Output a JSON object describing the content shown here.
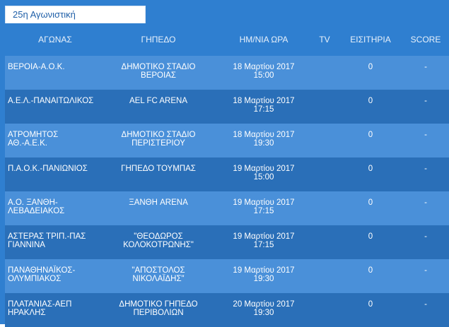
{
  "tab": {
    "label": "25η Αγωνιστική"
  },
  "headers": {
    "match": "ΑΓΩΝΑΣ",
    "stadium": "ΓΗΠΕΔΟ",
    "datetime": "ΗΜ/ΝΙΑ ΩΡΑ",
    "tv": "TV",
    "tickets": "ΕΙΣΙΤΗΡΙΑ",
    "score": "SCORE"
  },
  "rows": [
    {
      "match": [
        "ΒΕΡΟΙΑ-Α.Ο.Κ.",
        ""
      ],
      "stadium": [
        "ΔΗΜΟΤΙΚΟ ΣΤΑΔΙΟ",
        "ΒΕΡΟΙΑΣ"
      ],
      "date": "18 Μαρτίου 2017",
      "time": "15:00",
      "tv": "",
      "tickets": "0",
      "score": "-"
    },
    {
      "match": [
        "Α.Ε.Λ.-ΠΑΝΑΙΤΩΛΙΚΟΣ",
        ""
      ],
      "stadium": [
        "AEL FC ARENA",
        ""
      ],
      "date": "18 Μαρτίου 2017",
      "time": "17:15",
      "tv": "",
      "tickets": "0",
      "score": "-"
    },
    {
      "match": [
        "ΑΤΡΟΜΗΤΟΣ",
        "ΑΘ.-Α.Ε.Κ."
      ],
      "stadium": [
        "ΔΗΜΟΤΙΚΟ ΣΤΑΔΙΟ",
        "ΠΕΡΙΣΤΕΡΙΟΥ"
      ],
      "date": "18 Μαρτίου 2017",
      "time": "19:30",
      "tv": "",
      "tickets": "0",
      "score": "-"
    },
    {
      "match": [
        "Π.Α.Ο.Κ.-ΠΑΝΙΩΝΙΟΣ",
        ""
      ],
      "stadium": [
        "ΓΗΠΕΔΟ ΤΟΥΜΠΑΣ",
        ""
      ],
      "date": "19 Μαρτίου 2017",
      "time": "15:00",
      "tv": "",
      "tickets": "0",
      "score": "-"
    },
    {
      "match": [
        "Α.Ο. ΞΑΝΘΗ-",
        "ΛΕΒΑΔΕΙΑΚΟΣ"
      ],
      "stadium": [
        "ΞΑΝΘΗ ARENA",
        ""
      ],
      "date": "19 Μαρτίου 2017",
      "time": "17:15",
      "tv": "",
      "tickets": "0",
      "score": "-"
    },
    {
      "match": [
        "ΑΣΤΕΡΑΣ ΤΡΙΠ.-ΠΑΣ",
        "ΓΙΑΝΝΙΝΑ"
      ],
      "stadium": [
        "\"ΘΕΟΔΩΡΟΣ",
        "ΚΟΛΟΚΟΤΡΩΝΗΣ\""
      ],
      "date": "19 Μαρτίου 2017",
      "time": "17:15",
      "tv": "",
      "tickets": "0",
      "score": "-"
    },
    {
      "match": [
        "ΠΑΝΑΘΗΝΑΪΚΟΣ-",
        "ΟΛΥΜΠΙΑΚΟΣ"
      ],
      "stadium": [
        "\"ΑΠΟΣΤΟΛΟΣ",
        "ΝΙΚΟΛΑΪΔΗΣ\""
      ],
      "date": "19 Μαρτίου 2017",
      "time": "19:30",
      "tv": "",
      "tickets": "0",
      "score": "-"
    },
    {
      "match": [
        "ΠΛΑΤΑΝΙΑΣ-ΑΕΠ",
        "ΗΡΑΚΛΗΣ"
      ],
      "stadium": [
        "ΔΗΜΟΤΙΚΟ ΓΗΠΕΔΟ",
        "ΠΕΡΙΒΟΛΙΩΝ"
      ],
      "date": "20 Μαρτίου 2017",
      "time": "19:30",
      "tv": "",
      "tickets": "0",
      "score": "-"
    }
  ]
}
